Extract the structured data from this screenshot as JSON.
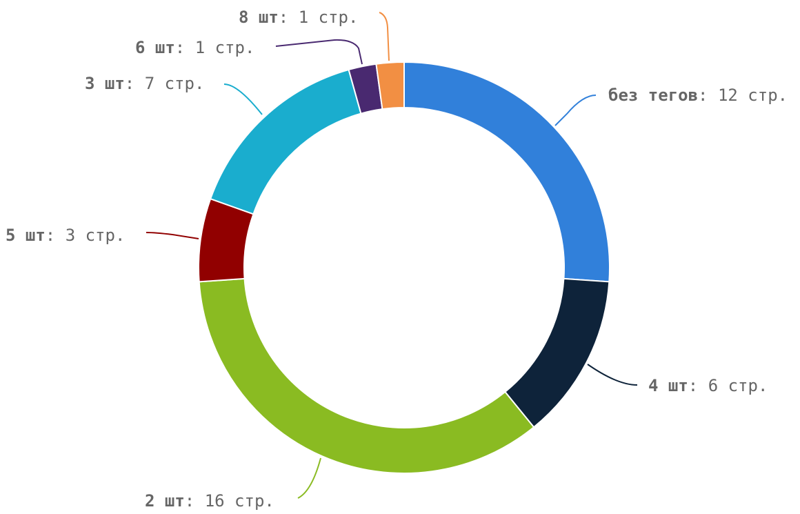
{
  "chart_data": {
    "type": "pie",
    "variant": "donut",
    "title": "",
    "unit": "стр.",
    "slices": [
      {
        "name": "без тегов",
        "value": 12,
        "label_value": "12 стр.",
        "color": "#3180DA"
      },
      {
        "name": "4 шт",
        "value": 6,
        "label_value": "6 стр.",
        "color": "#0E233A"
      },
      {
        "name": "2 шт",
        "value": 16,
        "label_value": "16 стр.",
        "color": "#8ABB22"
      },
      {
        "name": "5 шт",
        "value": 3,
        "label_value": "3 стр.",
        "color": "#910000"
      },
      {
        "name": "3 шт",
        "value": 7,
        "label_value": "7 стр.",
        "color": "#1AADCE"
      },
      {
        "name": "6 шт",
        "value": 1,
        "label_value": "1 стр.",
        "color": "#492970"
      },
      {
        "name": "8 шт",
        "value": 1,
        "label_value": "1 стр.",
        "color": "#F28F43"
      }
    ]
  }
}
